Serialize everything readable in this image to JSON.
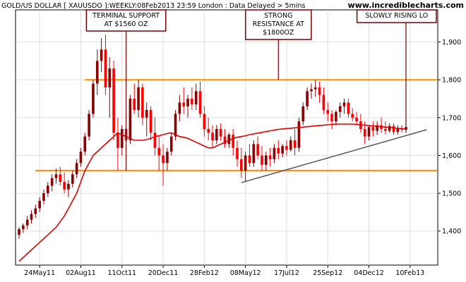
{
  "header": {
    "title": "GOLD/US DOLLAR [ XAUUSDO ]:WEEKLY:08Feb2013 23:59 London : Data Delayed > 5mins",
    "site": "www.incrediblecharts.com"
  },
  "chart_data": {
    "type": "candlestick",
    "colors": {
      "up": "#8b0000",
      "down": "#ff0000",
      "moving_average": "#e00000",
      "horizontal_lines": "#ff8c00",
      "trendline": "#555555",
      "annotation_border": "#7a0000",
      "grid": "#dddddd"
    },
    "yticks": [
      "1,400",
      "1,500",
      "1,600",
      "1,700",
      "1,800",
      "1,900"
    ],
    "ytick_values": [
      1400,
      1500,
      1600,
      1700,
      1800,
      1900
    ],
    "ylim": [
      1310,
      1985
    ],
    "xticks": [
      "24May11",
      "02Aug11",
      "11Oct11",
      "20Dec11",
      "28Feb12",
      "08May12",
      "17Jul12",
      "25Sep12",
      "04Dec12",
      "10Feb13"
    ],
    "xtick_weeks": [
      5,
      15,
      25,
      35,
      45,
      55,
      65,
      75,
      85,
      95
    ],
    "horizontal_levels": [
      1800,
      1560
    ],
    "trendline": {
      "start": {
        "week": 54,
        "price": 1528
      },
      "end": {
        "week": 99,
        "price": 1668
      }
    },
    "annotations": [
      {
        "lines": [
          "TERMINAL SUPPORT",
          "AT $1560 OZ"
        ],
        "target_week": 26,
        "target_price": 1560
      },
      {
        "lines": [
          "STRONG",
          "RESISTANCE AT",
          "$1800OZ"
        ],
        "target_week": 63,
        "target_price": 1800
      },
      {
        "lines": [
          "SLOWLY RISING LO"
        ],
        "target_week": 94,
        "target_price": 1660
      }
    ],
    "moving_average": [
      1320,
      1330,
      1340,
      1350,
      1360,
      1370,
      1380,
      1390,
      1400,
      1410,
      1425,
      1440,
      1460,
      1480,
      1500,
      1530,
      1560,
      1580,
      1600,
      1610,
      1620,
      1630,
      1640,
      1650,
      1660,
      1655,
      1650,
      1645,
      1640,
      1640,
      1640,
      1642,
      1645,
      1650,
      1652,
      1655,
      1658,
      1660,
      1655,
      1650,
      1648,
      1645,
      1640,
      1635,
      1630,
      1625,
      1620,
      1620,
      1625,
      1630,
      1635,
      1640,
      1645,
      1648,
      1650,
      1652,
      1655,
      1657,
      1659,
      1661,
      1663,
      1665,
      1667,
      1669,
      1670,
      1671,
      1672,
      1673,
      1674,
      1675,
      1676,
      1677,
      1678,
      1679,
      1680,
      1681,
      1682,
      1683,
      1683,
      1683,
      1683,
      1683,
      1682,
      1681,
      1680,
      1679,
      1678,
      1677,
      1676,
      1675,
      1674,
      1673,
      1672,
      1671,
      1670
    ],
    "candles": [
      {
        "o": 1390,
        "h": 1410,
        "l": 1380,
        "c": 1405
      },
      {
        "o": 1405,
        "h": 1420,
        "l": 1395,
        "c": 1415
      },
      {
        "o": 1415,
        "h": 1440,
        "l": 1405,
        "c": 1430
      },
      {
        "o": 1430,
        "h": 1455,
        "l": 1420,
        "c": 1445
      },
      {
        "o": 1445,
        "h": 1470,
        "l": 1435,
        "c": 1460
      },
      {
        "o": 1460,
        "h": 1490,
        "l": 1450,
        "c": 1480
      },
      {
        "o": 1480,
        "h": 1510,
        "l": 1470,
        "c": 1500
      },
      {
        "o": 1500,
        "h": 1530,
        "l": 1490,
        "c": 1520
      },
      {
        "o": 1520,
        "h": 1550,
        "l": 1505,
        "c": 1540
      },
      {
        "o": 1540,
        "h": 1565,
        "l": 1525,
        "c": 1550
      },
      {
        "o": 1550,
        "h": 1570,
        "l": 1520,
        "c": 1530
      },
      {
        "o": 1530,
        "h": 1555,
        "l": 1500,
        "c": 1510
      },
      {
        "o": 1510,
        "h": 1535,
        "l": 1490,
        "c": 1525
      },
      {
        "o": 1525,
        "h": 1560,
        "l": 1515,
        "c": 1550
      },
      {
        "o": 1550,
        "h": 1590,
        "l": 1540,
        "c": 1580
      },
      {
        "o": 1580,
        "h": 1620,
        "l": 1570,
        "c": 1610
      },
      {
        "o": 1610,
        "h": 1660,
        "l": 1600,
        "c": 1650
      },
      {
        "o": 1650,
        "h": 1720,
        "l": 1640,
        "c": 1710
      },
      {
        "o": 1710,
        "h": 1800,
        "l": 1700,
        "c": 1790
      },
      {
        "o": 1790,
        "h": 1880,
        "l": 1760,
        "c": 1850
      },
      {
        "o": 1850,
        "h": 1910,
        "l": 1820,
        "c": 1880
      },
      {
        "o": 1880,
        "h": 1920,
        "l": 1760,
        "c": 1780
      },
      {
        "o": 1780,
        "h": 1860,
        "l": 1700,
        "c": 1830
      },
      {
        "o": 1830,
        "h": 1850,
        "l": 1640,
        "c": 1660
      },
      {
        "o": 1660,
        "h": 1700,
        "l": 1560,
        "c": 1620
      },
      {
        "o": 1620,
        "h": 1680,
        "l": 1600,
        "c": 1670
      },
      {
        "o": 1670,
        "h": 1720,
        "l": 1610,
        "c": 1640
      },
      {
        "o": 1640,
        "h": 1760,
        "l": 1630,
        "c": 1750
      },
      {
        "o": 1750,
        "h": 1790,
        "l": 1710,
        "c": 1720
      },
      {
        "o": 1720,
        "h": 1800,
        "l": 1700,
        "c": 1780
      },
      {
        "o": 1780,
        "h": 1790,
        "l": 1680,
        "c": 1700
      },
      {
        "o": 1700,
        "h": 1740,
        "l": 1650,
        "c": 1720
      },
      {
        "o": 1720,
        "h": 1730,
        "l": 1640,
        "c": 1660
      },
      {
        "o": 1660,
        "h": 1700,
        "l": 1600,
        "c": 1620
      },
      {
        "o": 1620,
        "h": 1650,
        "l": 1560,
        "c": 1600
      },
      {
        "o": 1600,
        "h": 1630,
        "l": 1520,
        "c": 1580
      },
      {
        "o": 1580,
        "h": 1620,
        "l": 1560,
        "c": 1610
      },
      {
        "o": 1610,
        "h": 1660,
        "l": 1600,
        "c": 1650
      },
      {
        "o": 1650,
        "h": 1720,
        "l": 1640,
        "c": 1710
      },
      {
        "o": 1710,
        "h": 1760,
        "l": 1690,
        "c": 1740
      },
      {
        "o": 1740,
        "h": 1780,
        "l": 1710,
        "c": 1730
      },
      {
        "o": 1730,
        "h": 1760,
        "l": 1700,
        "c": 1750
      },
      {
        "o": 1750,
        "h": 1780,
        "l": 1720,
        "c": 1735
      },
      {
        "o": 1735,
        "h": 1790,
        "l": 1720,
        "c": 1770
      },
      {
        "o": 1770,
        "h": 1795,
        "l": 1700,
        "c": 1710
      },
      {
        "o": 1710,
        "h": 1730,
        "l": 1650,
        "c": 1670
      },
      {
        "o": 1670,
        "h": 1700,
        "l": 1640,
        "c": 1660
      },
      {
        "o": 1660,
        "h": 1680,
        "l": 1620,
        "c": 1640
      },
      {
        "o": 1640,
        "h": 1680,
        "l": 1630,
        "c": 1670
      },
      {
        "o": 1670,
        "h": 1685,
        "l": 1640,
        "c": 1650
      },
      {
        "o": 1650,
        "h": 1670,
        "l": 1620,
        "c": 1630
      },
      {
        "o": 1630,
        "h": 1660,
        "l": 1620,
        "c": 1655
      },
      {
        "o": 1655,
        "h": 1670,
        "l": 1600,
        "c": 1620
      },
      {
        "o": 1620,
        "h": 1640,
        "l": 1570,
        "c": 1590
      },
      {
        "o": 1590,
        "h": 1620,
        "l": 1540,
        "c": 1560
      },
      {
        "o": 1560,
        "h": 1610,
        "l": 1530,
        "c": 1600
      },
      {
        "o": 1600,
        "h": 1630,
        "l": 1570,
        "c": 1580
      },
      {
        "o": 1580,
        "h": 1640,
        "l": 1570,
        "c": 1630
      },
      {
        "o": 1630,
        "h": 1650,
        "l": 1590,
        "c": 1600
      },
      {
        "o": 1600,
        "h": 1625,
        "l": 1560,
        "c": 1575
      },
      {
        "o": 1575,
        "h": 1610,
        "l": 1560,
        "c": 1600
      },
      {
        "o": 1600,
        "h": 1620,
        "l": 1570,
        "c": 1590
      },
      {
        "o": 1590,
        "h": 1630,
        "l": 1580,
        "c": 1620
      },
      {
        "o": 1620,
        "h": 1640,
        "l": 1590,
        "c": 1605
      },
      {
        "o": 1605,
        "h": 1630,
        "l": 1595,
        "c": 1625
      },
      {
        "o": 1625,
        "h": 1640,
        "l": 1600,
        "c": 1615
      },
      {
        "o": 1615,
        "h": 1650,
        "l": 1610,
        "c": 1640
      },
      {
        "o": 1640,
        "h": 1670,
        "l": 1600,
        "c": 1620
      },
      {
        "o": 1620,
        "h": 1700,
        "l": 1610,
        "c": 1690
      },
      {
        "o": 1690,
        "h": 1740,
        "l": 1680,
        "c": 1730
      },
      {
        "o": 1730,
        "h": 1780,
        "l": 1720,
        "c": 1770
      },
      {
        "o": 1770,
        "h": 1790,
        "l": 1750,
        "c": 1775
      },
      {
        "o": 1775,
        "h": 1800,
        "l": 1755,
        "c": 1780
      },
      {
        "o": 1780,
        "h": 1795,
        "l": 1740,
        "c": 1760
      },
      {
        "o": 1760,
        "h": 1780,
        "l": 1710,
        "c": 1720
      },
      {
        "o": 1720,
        "h": 1740,
        "l": 1690,
        "c": 1710
      },
      {
        "o": 1710,
        "h": 1720,
        "l": 1670,
        "c": 1690
      },
      {
        "o": 1690,
        "h": 1720,
        "l": 1680,
        "c": 1715
      },
      {
        "o": 1715,
        "h": 1740,
        "l": 1700,
        "c": 1730
      },
      {
        "o": 1730,
        "h": 1750,
        "l": 1710,
        "c": 1740
      },
      {
        "o": 1740,
        "h": 1750,
        "l": 1700,
        "c": 1710
      },
      {
        "o": 1710,
        "h": 1725,
        "l": 1690,
        "c": 1700
      },
      {
        "o": 1700,
        "h": 1715,
        "l": 1680,
        "c": 1690
      },
      {
        "o": 1690,
        "h": 1710,
        "l": 1660,
        "c": 1670
      },
      {
        "o": 1670,
        "h": 1690,
        "l": 1630,
        "c": 1650
      },
      {
        "o": 1650,
        "h": 1680,
        "l": 1640,
        "c": 1675
      },
      {
        "o": 1675,
        "h": 1690,
        "l": 1650,
        "c": 1665
      },
      {
        "o": 1665,
        "h": 1690,
        "l": 1655,
        "c": 1680
      },
      {
        "o": 1680,
        "h": 1700,
        "l": 1660,
        "c": 1670
      },
      {
        "o": 1670,
        "h": 1690,
        "l": 1655,
        "c": 1665
      },
      {
        "o": 1665,
        "h": 1685,
        "l": 1660,
        "c": 1678
      },
      {
        "o": 1678,
        "h": 1685,
        "l": 1655,
        "c": 1662
      },
      {
        "o": 1662,
        "h": 1680,
        "l": 1655,
        "c": 1672
      },
      {
        "o": 1672,
        "h": 1680,
        "l": 1660,
        "c": 1668
      },
      {
        "o": 1668,
        "h": 1680,
        "l": 1665,
        "c": 1675
      }
    ]
  }
}
